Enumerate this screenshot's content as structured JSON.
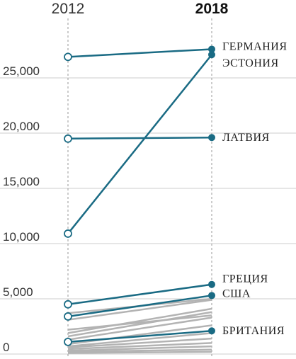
{
  "chart_data": {
    "type": "line",
    "title": "",
    "xlabel": "",
    "ylabel": "",
    "x": [
      "2012",
      "2018"
    ],
    "x_emphasis": "2018",
    "ylim": [
      0,
      28000
    ],
    "yticks": [
      0,
      5000,
      10000,
      15000,
      20000,
      25000
    ],
    "ytick_labels": [
      "0",
      "5,000",
      "10,000",
      "15,000",
      "20,000",
      "25,000"
    ],
    "grid": true,
    "colors": {
      "highlight": "#1a6b84",
      "background_series": "#b3b3b3",
      "grid": "#cccccc"
    },
    "series": [
      {
        "name": "ГЕРМАНИЯ",
        "values": [
          26900,
          27600
        ],
        "highlight": true
      },
      {
        "name": "ЭСТОНИЯ",
        "values": [
          10900,
          27100
        ],
        "highlight": true
      },
      {
        "name": "ЛАТВИЯ",
        "values": [
          19500,
          19600
        ],
        "highlight": true
      },
      {
        "name": "ГРЕЦИЯ",
        "values": [
          4500,
          6300
        ],
        "highlight": true
      },
      {
        "name": "США",
        "values": [
          3400,
          5300
        ],
        "highlight": true
      },
      {
        "name": "БРИТАНИЯ",
        "values": [
          1100,
          2100
        ],
        "highlight": true
      },
      {
        "values": [
          3700,
          5000
        ],
        "highlight": false
      },
      {
        "values": [
          3100,
          4900
        ],
        "highlight": false
      },
      {
        "values": [
          1900,
          4100
        ],
        "highlight": false
      },
      {
        "values": [
          1600,
          3800
        ],
        "highlight": false
      },
      {
        "values": [
          1300,
          3300
        ],
        "highlight": false
      },
      {
        "values": [
          2200,
          3500
        ],
        "highlight": false
      },
      {
        "values": [
          900,
          2600
        ],
        "highlight": false
      },
      {
        "values": [
          700,
          1900
        ],
        "highlight": false
      },
      {
        "values": [
          600,
          1400
        ],
        "highlight": false
      },
      {
        "values": [
          450,
          1000
        ],
        "highlight": false
      },
      {
        "values": [
          300,
          700
        ],
        "highlight": false
      },
      {
        "values": [
          200,
          400
        ],
        "highlight": false
      },
      {
        "values": [
          100,
          200
        ],
        "highlight": false
      }
    ]
  }
}
